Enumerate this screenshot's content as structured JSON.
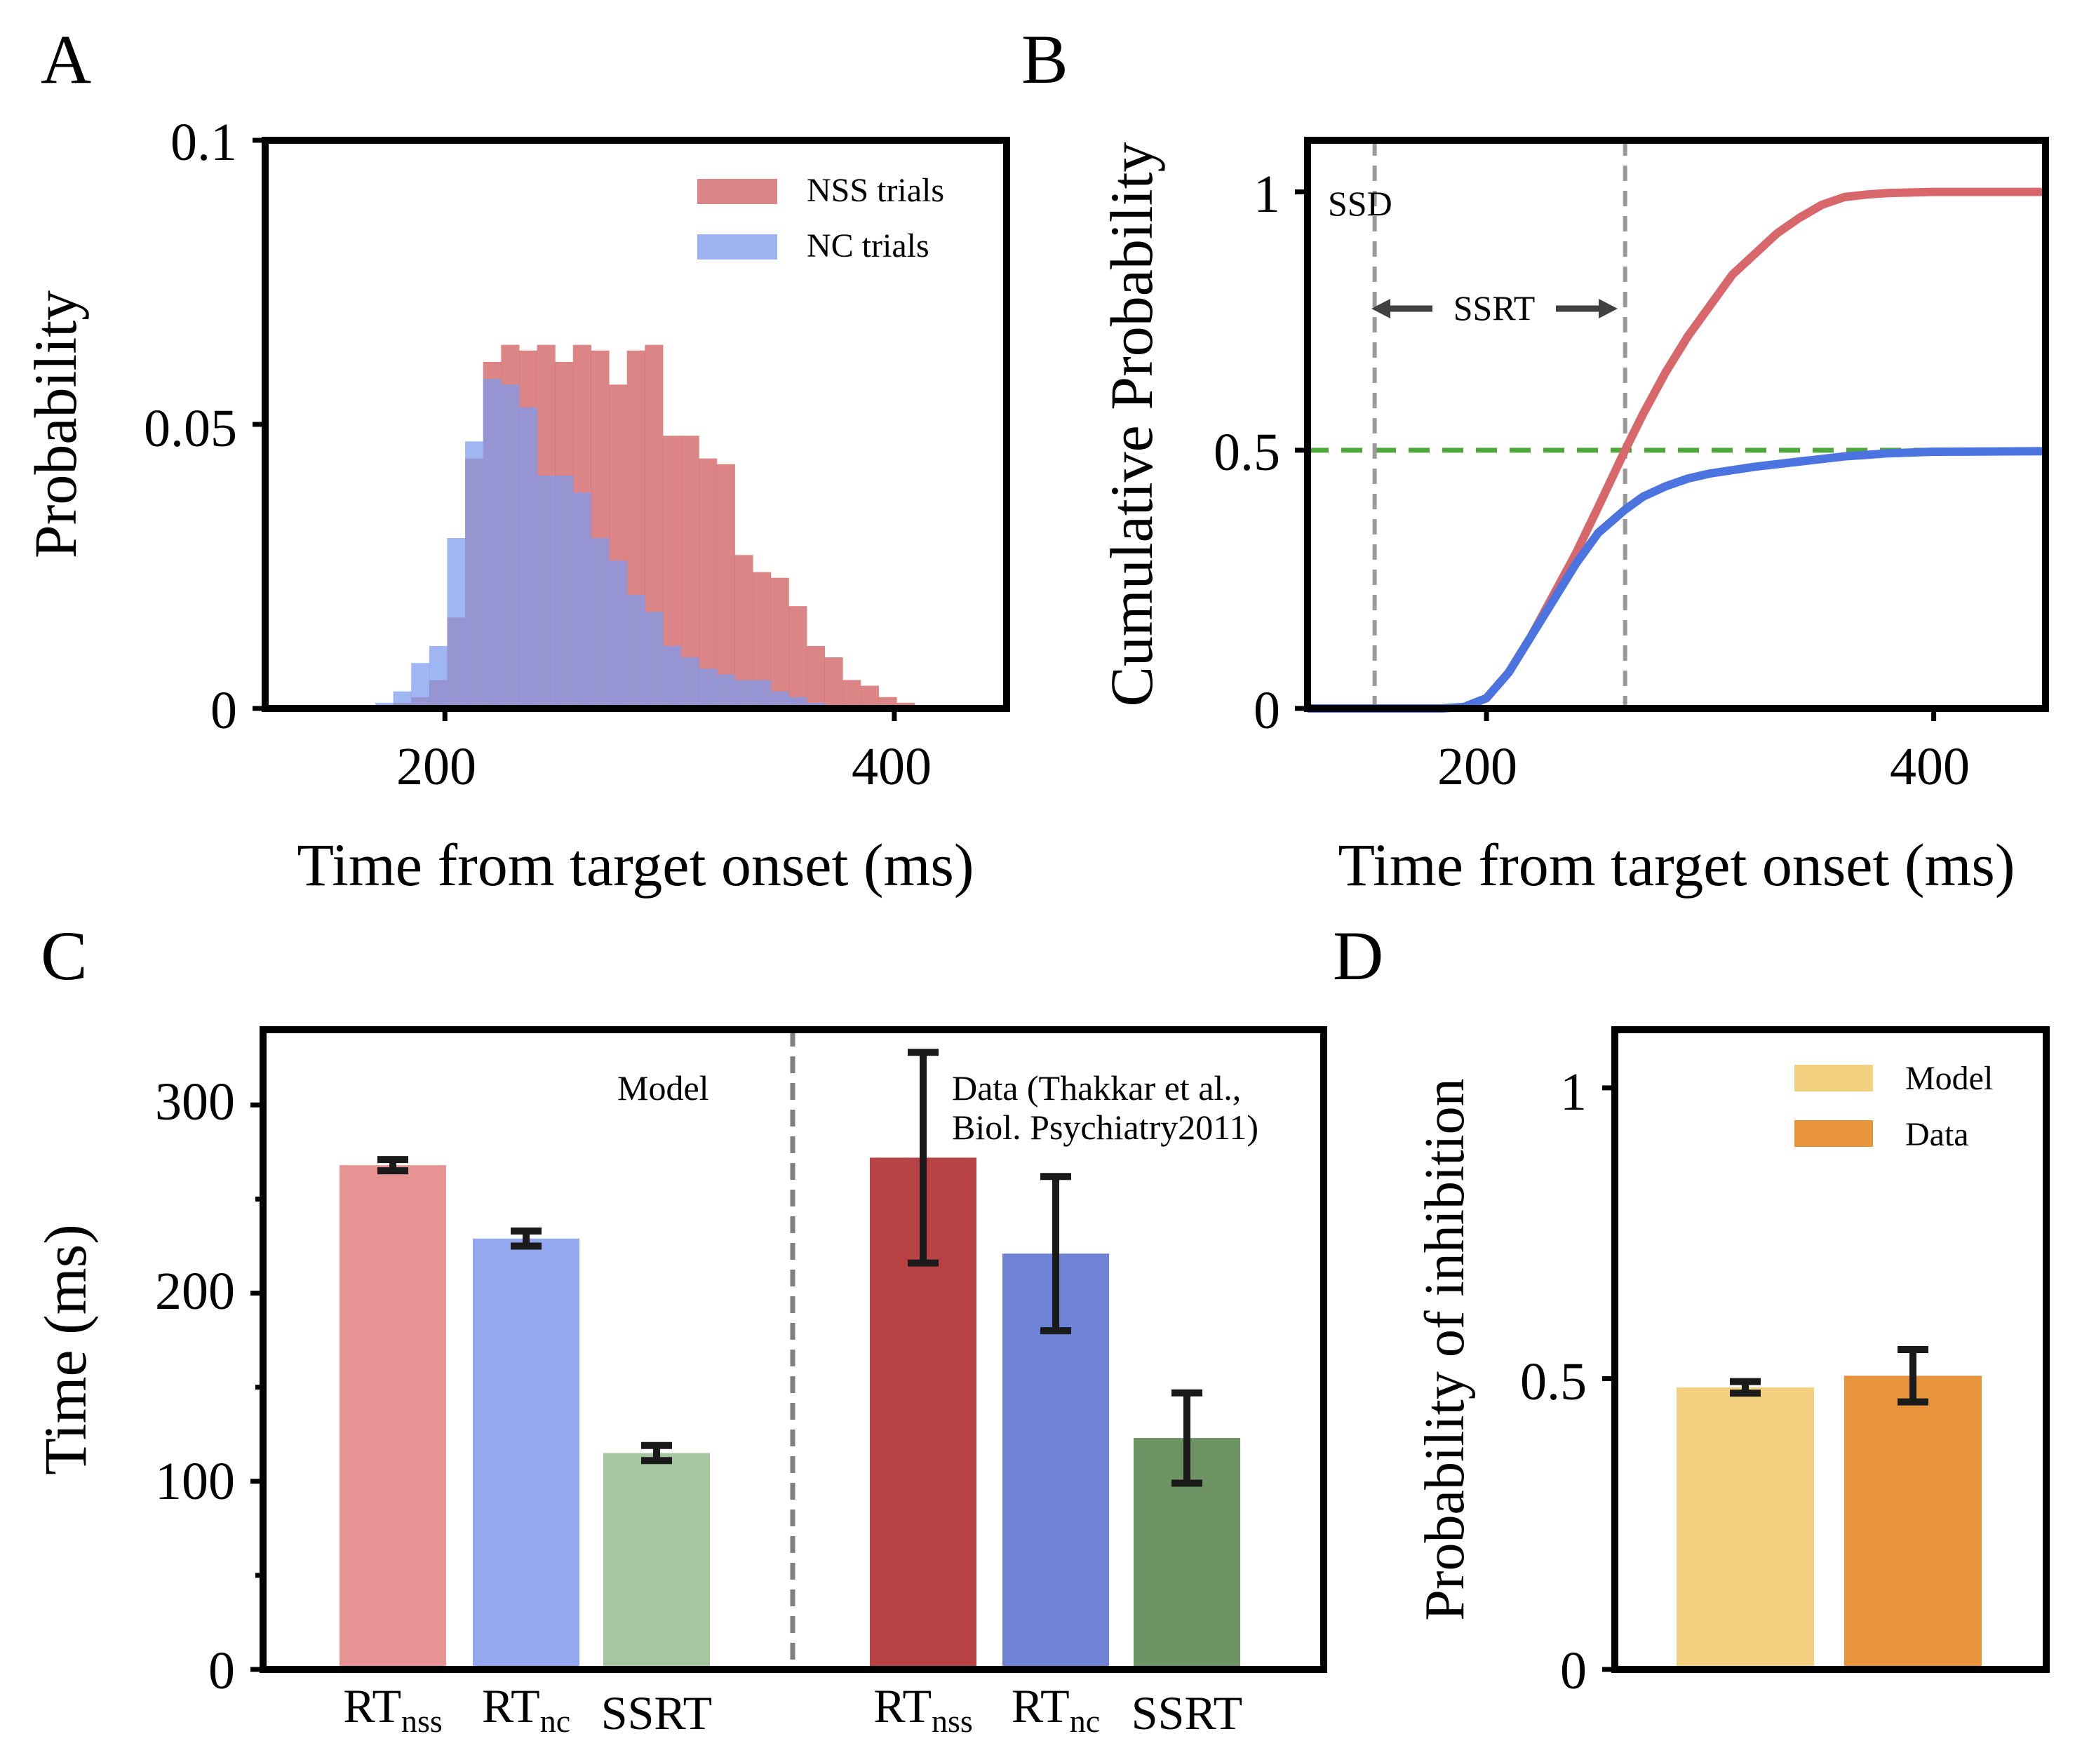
{
  "panels": {
    "A": {
      "label": "A"
    },
    "B": {
      "label": "B"
    },
    "C": {
      "label": "C"
    },
    "D": {
      "label": "D"
    }
  },
  "colors": {
    "nss_hist": "#d67072",
    "nc_hist": "#7b9bee",
    "nss_cdf": "#d7676b",
    "nc_cdf": "#4b74e0",
    "ssd_line": "#9a9a9a",
    "half_line": "#4ea83b",
    "model_nss": "#e79393",
    "model_nc": "#93a8ef",
    "model_ssrt": "#a4c79f",
    "data_nss": "#b94244",
    "data_nc": "#6f83d6",
    "data_ssrt": "#6e9463",
    "d_model": "#f3d07f",
    "d_data": "#e8943a",
    "err": "#1a1a1a",
    "divider": "#808080"
  },
  "chart_data": [
    {
      "id": "A",
      "type": "bar",
      "title": "",
      "xlabel": "Time from target onset (ms)",
      "ylabel": "Probability",
      "xlim": [
        120,
        450
      ],
      "ylim": [
        0,
        0.1
      ],
      "xticks": [
        200,
        400
      ],
      "xtick_labels": [
        "200",
        "400"
      ],
      "yticks": [
        0,
        0.05,
        0.1
      ],
      "ytick_labels": [
        "0",
        "0.05",
        "0.1"
      ],
      "bin_width": 8,
      "legend_position": "top-right",
      "series": [
        {
          "name": "NSS trials",
          "bin_starts": [
            177,
            185,
            193,
            201,
            209,
            217,
            225,
            233,
            241,
            249,
            257,
            265,
            273,
            281,
            289,
            297,
            305,
            313,
            321,
            329,
            337,
            345,
            353,
            361,
            369,
            377,
            385,
            393,
            401
          ],
          "values": [
            0.001,
            0.002,
            0.005,
            0.016,
            0.044,
            0.061,
            0.064,
            0.063,
            0.064,
            0.061,
            0.064,
            0.063,
            0.057,
            0.063,
            0.064,
            0.048,
            0.048,
            0.044,
            0.043,
            0.027,
            0.024,
            0.023,
            0.018,
            0.011,
            0.009,
            0.005,
            0.004,
            0.002,
            0.001
          ]
        },
        {
          "name": "NC trials",
          "bin_starts": [
            169,
            177,
            185,
            193,
            201,
            209,
            217,
            225,
            233,
            241,
            249,
            257,
            265,
            273,
            281,
            289,
            297,
            305,
            313,
            321,
            329,
            337,
            345,
            353,
            361,
            369
          ],
          "values": [
            0.001,
            0.003,
            0.008,
            0.011,
            0.03,
            0.047,
            0.058,
            0.057,
            0.053,
            0.041,
            0.041,
            0.038,
            0.03,
            0.026,
            0.02,
            0.017,
            0.011,
            0.009,
            0.007,
            0.006,
            0.005,
            0.005,
            0.003,
            0.002,
            0.001,
            0.0005
          ]
        }
      ]
    },
    {
      "id": "B",
      "type": "line",
      "xlabel": "Time from target onset (ms)",
      "ylabel": "Cumulative Probability",
      "xlim": [
        120,
        450
      ],
      "ylim": [
        0,
        1.1
      ],
      "xticks": [
        200,
        400
      ],
      "xtick_labels": [
        "200",
        "400"
      ],
      "yticks": [
        0,
        0.5,
        1
      ],
      "ytick_labels": [
        "0",
        "0.5",
        "1"
      ],
      "ssd": 150,
      "ssrt_end": 262,
      "half_level": 0.5,
      "ssd_label": "SSD",
      "ssrt_label": "SSRT",
      "series": [
        {
          "name": "NSS",
          "x": [
            120,
            180,
            190,
            200,
            210,
            220,
            230,
            240,
            250,
            262,
            270,
            280,
            290,
            300,
            310,
            320,
            330,
            340,
            350,
            360,
            370,
            380,
            400,
            420,
            450
          ],
          "y": [
            0,
            0,
            0.003,
            0.02,
            0.07,
            0.14,
            0.22,
            0.3,
            0.39,
            0.5,
            0.57,
            0.65,
            0.72,
            0.78,
            0.84,
            0.88,
            0.92,
            0.95,
            0.975,
            0.99,
            0.995,
            0.998,
            1.0,
            1.0,
            1.0
          ]
        },
        {
          "name": "NC",
          "x": [
            120,
            180,
            190,
            200,
            210,
            220,
            230,
            240,
            250,
            262,
            270,
            280,
            290,
            300,
            320,
            340,
            360,
            380,
            400,
            450
          ],
          "y": [
            0,
            0,
            0.003,
            0.02,
            0.07,
            0.14,
            0.21,
            0.28,
            0.34,
            0.385,
            0.41,
            0.43,
            0.445,
            0.455,
            0.468,
            0.478,
            0.488,
            0.494,
            0.497,
            0.498
          ]
        }
      ]
    },
    {
      "id": "C",
      "type": "bar",
      "ylabel": "Time (ms)",
      "ylim": [
        0,
        340
      ],
      "yticks": [
        0,
        100,
        200,
        300
      ],
      "ytick_labels": [
        "0",
        "100",
        "200",
        "300"
      ],
      "groups": [
        {
          "name": "Model",
          "bars": [
            {
              "base": "RT",
              "sub": "nss",
              "value": 268,
              "err": 3
            },
            {
              "base": "RT",
              "sub": "nc",
              "value": 229,
              "err": 4
            },
            {
              "base": "SSRT",
              "sub": "",
              "value": 115,
              "err": 4
            }
          ]
        },
        {
          "name": "Data",
          "bars": [
            {
              "base": "RT",
              "sub": "nss",
              "value": 272,
              "err": 56
            },
            {
              "base": "RT",
              "sub": "nc",
              "value": 221,
              "err": 41
            },
            {
              "base": "SSRT",
              "sub": "",
              "value": 123,
              "err": 24
            }
          ]
        }
      ],
      "model_annotation": "Model",
      "data_annotation_line1": "Data (Thakkar et al.,",
      "data_annotation_line2": "Biol. Psychiatry2011)"
    },
    {
      "id": "D",
      "type": "bar",
      "ylabel": "Probability of inhibition",
      "ylim": [
        0,
        1.1
      ],
      "yticks": [
        0,
        0.5,
        1
      ],
      "ytick_labels": [
        "0",
        "0.5",
        "1"
      ],
      "categories": [
        "Model",
        "Data"
      ],
      "values": [
        0.485,
        0.505
      ],
      "errors": [
        0.01,
        0.045
      ],
      "legend_position": "top-right"
    }
  ]
}
